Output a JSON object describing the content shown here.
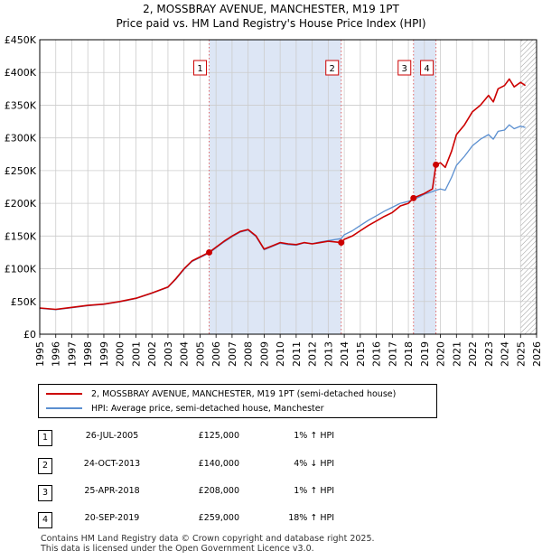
{
  "title_line1": "2, MOSSBRAY AVENUE, MANCHESTER, M19 1PT",
  "title_line2": "Price paid vs. HM Land Registry's House Price Index (HPI)",
  "legend": {
    "property": "2, MOSSBRAY AVENUE, MANCHESTER, M19 1PT (semi-detached house)",
    "hpi": "HPI: Average price, semi-detached house, Manchester"
  },
  "colors": {
    "property": "#cc0000",
    "hpi": "#5b8fd0",
    "shade": "#dde6f5",
    "grid": "#cccccc",
    "marker_line": "#e06666"
  },
  "transactions": [
    {
      "num": "1",
      "date": "26-JUL-2005",
      "price": "£125,000",
      "hpi": "1% ↑ HPI"
    },
    {
      "num": "2",
      "date": "24-OCT-2013",
      "price": "£140,000",
      "hpi": "4% ↓ HPI"
    },
    {
      "num": "3",
      "date": "25-APR-2018",
      "price": "£208,000",
      "hpi": "1% ↑ HPI"
    },
    {
      "num": "4",
      "date": "20-SEP-2019",
      "price": "£259,000",
      "hpi": "18% ↑ HPI"
    }
  ],
  "footer_line1": "Contains HM Land Registry data © Crown copyright and database right 2025.",
  "footer_line2": "This data is licensed under the Open Government Licence v3.0.",
  "chart_data": {
    "type": "line",
    "title": "Price paid vs. HM Land Registry's House Price Index (HPI)",
    "xlim": [
      1995,
      2026
    ],
    "ylim": [
      0,
      450000
    ],
    "x_ticks": [
      "1995",
      "1996",
      "1997",
      "1998",
      "1999",
      "2000",
      "2001",
      "2002",
      "2003",
      "2004",
      "2005",
      "2006",
      "2007",
      "2008",
      "2009",
      "2010",
      "2011",
      "2012",
      "2013",
      "2014",
      "2015",
      "2016",
      "2017",
      "2018",
      "2019",
      "2020",
      "2021",
      "2022",
      "2023",
      "2024",
      "2025",
      "2026"
    ],
    "y_ticks": [
      {
        "value": 0,
        "label": "£0"
      },
      {
        "value": 50000,
        "label": "£50K"
      },
      {
        "value": 100000,
        "label": "£100K"
      },
      {
        "value": 150000,
        "label": "£150K"
      },
      {
        "value": 200000,
        "label": "£200K"
      },
      {
        "value": 250000,
        "label": "£250K"
      },
      {
        "value": 300000,
        "label": "£300K"
      },
      {
        "value": 350000,
        "label": "£350K"
      },
      {
        "value": 400000,
        "label": "£400K"
      },
      {
        "value": 450000,
        "label": "£450K"
      }
    ],
    "shaded_ranges": [
      [
        2005.57,
        2013.81
      ],
      [
        2018.32,
        2019.72
      ]
    ],
    "hatched_after": 2025.0,
    "markers": [
      {
        "label": "1",
        "x": 2005.57,
        "y": 125000
      },
      {
        "label": "2",
        "x": 2013.81,
        "y": 140000
      },
      {
        "label": "3",
        "x": 2018.32,
        "y": 208000
      },
      {
        "label": "4",
        "x": 2019.72,
        "y": 259000
      }
    ],
    "series": [
      {
        "name": "2, MOSSBRAY AVENUE, MANCHESTER, M19 1PT (semi-detached house)",
        "x": [
          1995,
          1996,
          1997,
          1998,
          1999,
          2000,
          2001,
          2002,
          2003,
          2003.5,
          2004,
          2004.5,
          2005,
          2005.57,
          2006,
          2006.5,
          2007,
          2007.5,
          2008,
          2008.5,
          2009,
          2009.5,
          2010,
          2010.5,
          2011,
          2011.5,
          2012,
          2012.5,
          2013,
          2013.81,
          2014,
          2014.5,
          2015,
          2015.5,
          2016,
          2016.5,
          2017,
          2017.5,
          2018,
          2018.32,
          2018.7,
          2019,
          2019.5,
          2019.72,
          2020,
          2020.3,
          2020.7,
          2021,
          2021.5,
          2022,
          2022.5,
          2023,
          2023.3,
          2023.6,
          2024,
          2024.3,
          2024.6,
          2025,
          2025.3
        ],
        "values": [
          40000,
          38000,
          41000,
          44000,
          46000,
          50000,
          55000,
          63000,
          72000,
          85000,
          100000,
          112000,
          118000,
          125000,
          133000,
          142000,
          150000,
          157000,
          160000,
          150000,
          130000,
          135000,
          140000,
          138000,
          137000,
          140000,
          138000,
          140000,
          142000,
          140000,
          145000,
          150000,
          158000,
          166000,
          173000,
          180000,
          186000,
          196000,
          200000,
          208000,
          212000,
          215000,
          222000,
          259000,
          262000,
          255000,
          280000,
          305000,
          320000,
          340000,
          350000,
          365000,
          355000,
          375000,
          380000,
          390000,
          378000,
          385000,
          380000
        ]
      },
      {
        "name": "HPI: Average price, semi-detached house, Manchester",
        "x": [
          1995,
          1996,
          1997,
          1998,
          1999,
          2000,
          2001,
          2002,
          2003,
          2003.5,
          2004,
          2004.5,
          2005,
          2005.57,
          2006,
          2006.5,
          2007,
          2007.5,
          2008,
          2008.5,
          2009,
          2009.5,
          2010,
          2010.5,
          2011,
          2011.5,
          2012,
          2012.5,
          2013,
          2013.81,
          2014,
          2014.5,
          2015,
          2015.5,
          2016,
          2016.5,
          2017,
          2017.5,
          2018,
          2018.32,
          2018.7,
          2019,
          2019.5,
          2019.72,
          2020,
          2020.3,
          2020.7,
          2021,
          2021.5,
          2022,
          2022.5,
          2023,
          2023.3,
          2023.6,
          2024,
          2024.3,
          2024.6,
          2025,
          2025.3
        ],
        "values": [
          39500,
          37500,
          40500,
          43500,
          45500,
          49500,
          54500,
          62500,
          71500,
          84000,
          99000,
          111000,
          117000,
          124000,
          132000,
          141000,
          149000,
          156000,
          159000,
          149000,
          129000,
          134000,
          139000,
          137000,
          136000,
          139500,
          138500,
          141000,
          143000,
          146000,
          152000,
          158000,
          166000,
          174000,
          181000,
          188000,
          194000,
          200000,
          203000,
          206000,
          210000,
          214000,
          218000,
          220000,
          222000,
          220000,
          240000,
          258000,
          272000,
          288000,
          298000,
          305000,
          298000,
          310000,
          312000,
          320000,
          314000,
          318000,
          316000
        ]
      }
    ]
  }
}
